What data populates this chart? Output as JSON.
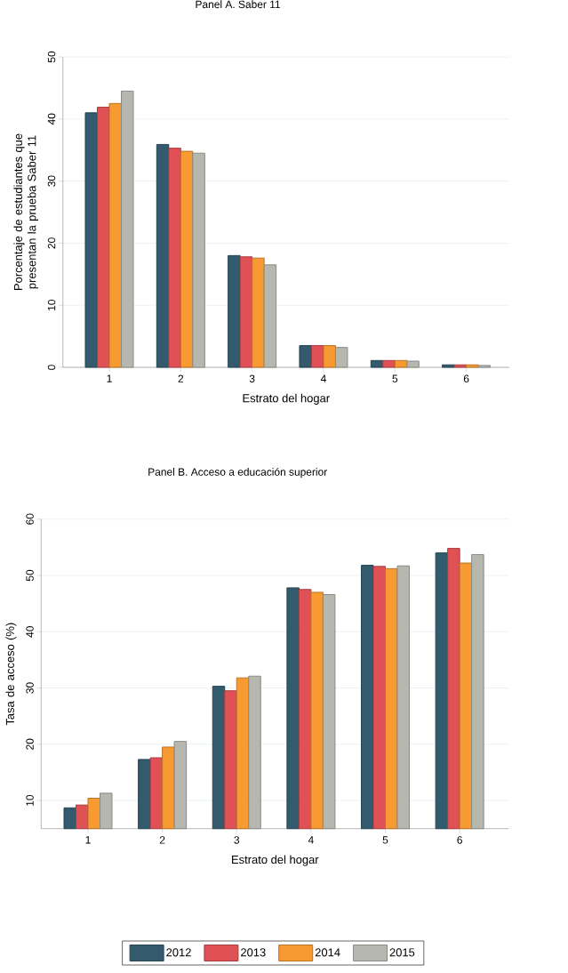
{
  "chart_data": [
    {
      "type": "bar",
      "title": "Panel A. Saber 11",
      "xlabel": "Estrato del hogar",
      "ylabel": "Porcentaje de estudiantes que presentan la prueba Saber 11",
      "categories": [
        "1",
        "2",
        "3",
        "4",
        "5",
        "6"
      ],
      "ylim": [
        0,
        50
      ],
      "yticks": [
        0,
        10,
        20,
        30,
        40,
        50
      ],
      "grid": "y",
      "legend": false,
      "series": [
        {
          "color": "#335a6d",
          "values": [
            41.0,
            35.9,
            18.0,
            3.5,
            1.1,
            0.4
          ]
        },
        {
          "color": "#e05155",
          "values": [
            41.9,
            35.3,
            17.8,
            3.5,
            1.1,
            0.4
          ]
        },
        {
          "color": "#f89a32",
          "values": [
            42.5,
            34.8,
            17.6,
            3.5,
            1.1,
            0.4
          ]
        },
        {
          "color": "#b6b8b0",
          "values": [
            44.5,
            34.5,
            16.5,
            3.2,
            1.0,
            0.3
          ]
        }
      ]
    },
    {
      "type": "bar",
      "title": "Panel B. Acceso a educación superior",
      "xlabel": "Estrato del hogar",
      "ylabel": "Tasa de acceso (%)",
      "categories": [
        "1",
        "2",
        "3",
        "4",
        "5",
        "6"
      ],
      "ylim": [
        5,
        60
      ],
      "yticks": [
        10,
        20,
        30,
        40,
        50,
        60
      ],
      "grid": "y",
      "legend": "bottom",
      "series": [
        {
          "name": "2012",
          "color": "#335a6d",
          "values": [
            8.7,
            17.3,
            30.3,
            47.8,
            51.8,
            54.0
          ]
        },
        {
          "name": "2013",
          "color": "#e05155",
          "values": [
            9.2,
            17.6,
            29.5,
            47.5,
            51.6,
            54.8
          ]
        },
        {
          "name": "2014",
          "color": "#f89a32",
          "values": [
            10.4,
            19.5,
            31.8,
            47.0,
            51.2,
            52.2
          ]
        },
        {
          "name": "2015",
          "color": "#b6b8b0",
          "values": [
            11.3,
            20.5,
            32.1,
            46.6,
            51.7,
            53.7
          ]
        }
      ]
    }
  ]
}
